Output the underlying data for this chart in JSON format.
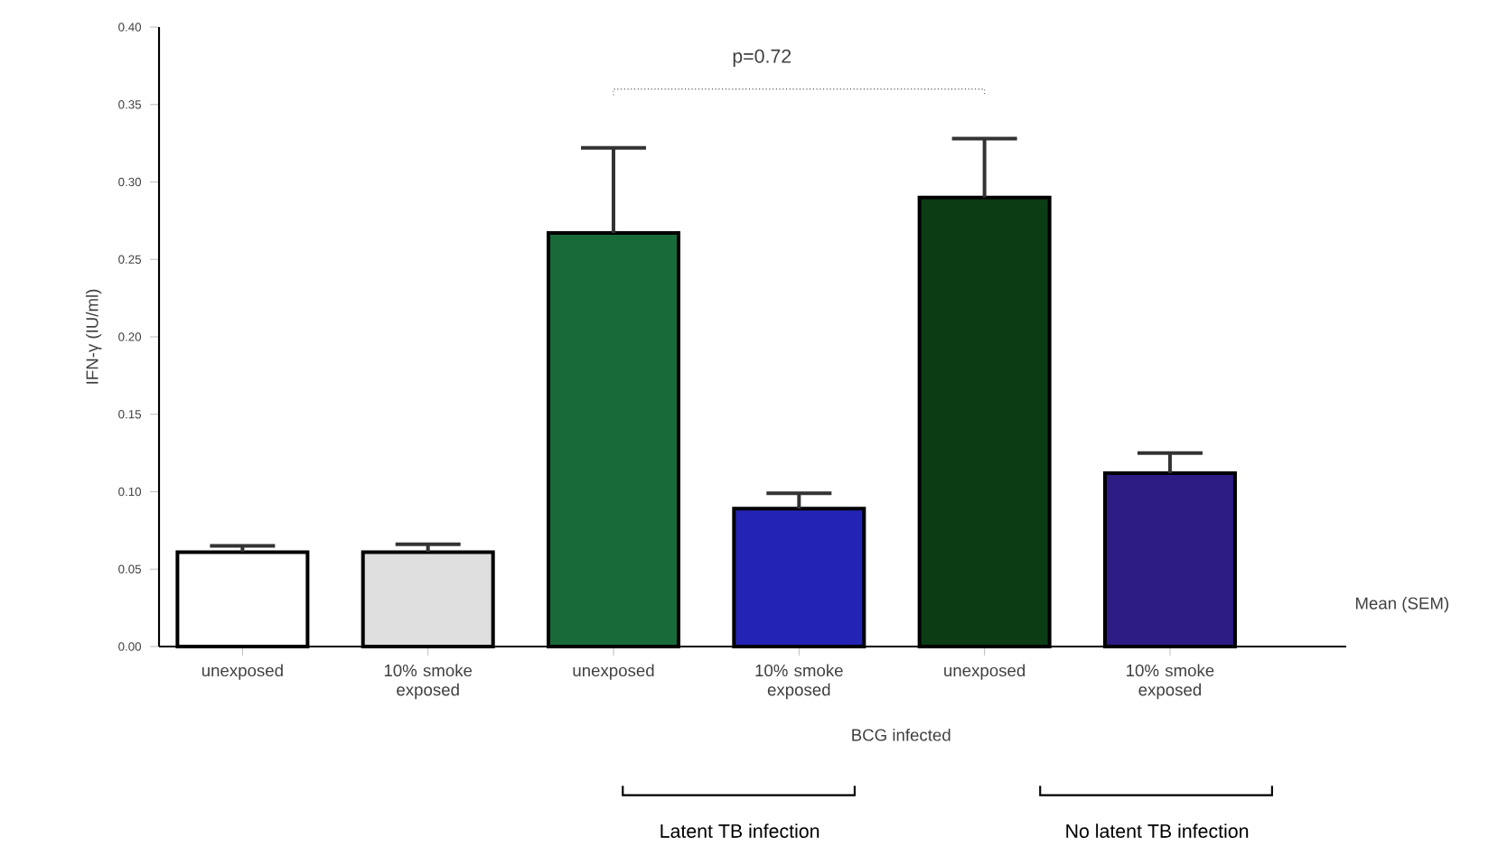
{
  "chart_data": {
    "type": "bar",
    "ylabel": "IFN-γ (IU/ml)",
    "categories": [
      "unexposed",
      "10% smoke exposed",
      "unexposed",
      "10% smoke exposed",
      "unexposed",
      "10% smoke exposed"
    ],
    "values": [
      0.061,
      0.061,
      0.267,
      0.089,
      0.29,
      0.112
    ],
    "errors": [
      [
        0.061,
        0.065
      ],
      [
        0.061,
        0.066
      ],
      [
        0.267,
        0.322
      ],
      [
        0.089,
        0.099
      ],
      [
        0.29,
        0.328
      ],
      [
        0.112,
        0.125
      ]
    ],
    "colors": [
      "#ffffff",
      "#dedede",
      "#186b38",
      "#2424b4",
      "#0c3c14",
      "#2c1c84"
    ],
    "ylim": [
      0,
      0.4
    ],
    "yticks": [
      {
        "value": 0,
        "label": "0.00"
      },
      {
        "value": 0.05,
        "label": "0.05"
      },
      {
        "value": 0.1,
        "label": "0.10"
      },
      {
        "value": 0.15,
        "label": "0.15"
      },
      {
        "value": 0.2,
        "label": "0.20"
      },
      {
        "value": 0.25,
        "label": "0.25"
      },
      {
        "value": 0.3,
        "label": "0.30"
      },
      {
        "value": 0.35,
        "label": "0.35"
      },
      {
        "value": 0.4,
        "label": "0.40"
      }
    ],
    "annotations": [
      "p=0.72",
      "Mean (SEM)",
      "BCG infected",
      "Latent TB infection",
      "No latent TB infection"
    ],
    "grid": false
  }
}
